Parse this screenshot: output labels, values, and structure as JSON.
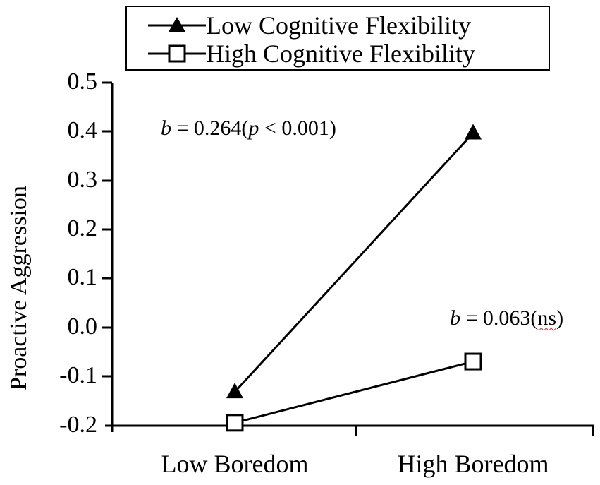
{
  "chart_data": {
    "type": "line",
    "title": "",
    "xlabel": "",
    "ylabel": "Proactive Aggression",
    "categories": [
      "Low Boredom",
      "High Boredom"
    ],
    "ylim": [
      -0.2,
      0.5
    ],
    "yticks": [
      "0.5",
      "0.4",
      "0.3",
      "0.2",
      "0.1",
      "0.0",
      "-0.1",
      "-0.2"
    ],
    "grid": false,
    "legend_position": "top",
    "series": [
      {
        "name": "Low Cognitive Flexibility",
        "marker": "filled-triangle",
        "values": [
          -0.131,
          0.397
        ]
      },
      {
        "name": "High Cognitive Flexibility",
        "marker": "open-square",
        "values": [
          -0.194,
          -0.069
        ]
      }
    ],
    "annotations": [
      {
        "b_label": "b",
        "equals": " = 0.264(",
        "p_label": "p",
        "rest": " < 0.001)",
        "series": "Low Cognitive Flexibility"
      },
      {
        "b_label": "b",
        "equals": " = 0.063(",
        "ns": "ns",
        "rest": ")",
        "series": "High Cognitive Flexibility"
      }
    ]
  },
  "legend": {
    "items": [
      {
        "label": "Low Cognitive Flexibility"
      },
      {
        "label": "High Cognitive Flexibility"
      }
    ]
  },
  "axes": {
    "ylabel": "Proactive Aggression",
    "yticks": [
      "0.5",
      "0.4",
      "0.3",
      "0.2",
      "0.1",
      "0.0",
      "-0.1",
      "-0.2"
    ],
    "xticks": [
      "Low Boredom",
      "High Boredom"
    ]
  },
  "colors": {
    "line": "#000000",
    "background": "#ffffff",
    "spellcheck": "#e02020"
  }
}
